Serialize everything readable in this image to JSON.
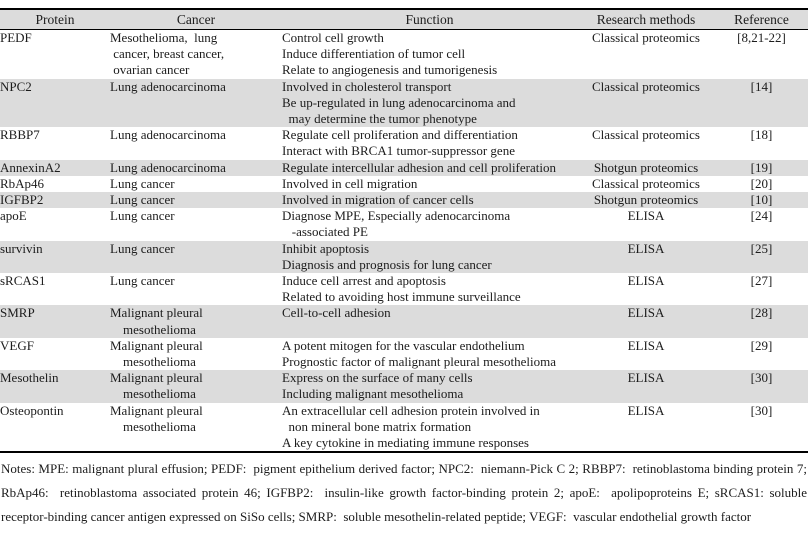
{
  "table": {
    "headers": [
      "Protein",
      "Cancer",
      "Function",
      "Research methods",
      "Reference"
    ],
    "rows": [
      {
        "protein": "PEDF",
        "cancer": [
          "Mesothelioma,  lung",
          " cancer, breast cancer,",
          " ovarian cancer"
        ],
        "functions": [
          "Control cell growth",
          "Induce differentiation of tumor cell",
          "Relate to angiogenesis and tumorigenesis"
        ],
        "method": "Classical proteomics",
        "reference": "[8,21-22]"
      },
      {
        "protein": "NPC2",
        "cancer": [
          "Lung adenocarcinoma"
        ],
        "functions": [
          "Involved in cholesterol transport",
          "Be up-regulated in lung adenocarcinoma and",
          "  may determine the tumor phenotype"
        ],
        "method": "Classical proteomics",
        "reference": "[14]"
      },
      {
        "protein": "RBBP7",
        "cancer": [
          "Lung adenocarcinoma"
        ],
        "functions": [
          "Regulate cell proliferation and differentiation",
          "Interact with BRCA1 tumor-suppressor gene"
        ],
        "method": "Classical proteomics",
        "reference": "[18]"
      },
      {
        "protein": "AnnexinA2",
        "cancer": [
          "Lung adenocarcinoma"
        ],
        "functions": [
          "Regulate intercellular adhesion and cell proliferation"
        ],
        "method": "Shotgun proteomics",
        "reference": "[19]"
      },
      {
        "protein": "RbAp46",
        "cancer": [
          "Lung cancer"
        ],
        "functions": [
          "Involved in cell migration"
        ],
        "method": "Classical proteomics",
        "reference": "[20]"
      },
      {
        "protein": "IGFBP2",
        "cancer": [
          "Lung cancer"
        ],
        "functions": [
          "Involved in migration of cancer cells"
        ],
        "method": "Shotgun proteomics",
        "reference": "[10]"
      },
      {
        "protein": "apoE",
        "cancer": [
          "Lung cancer"
        ],
        "functions": [
          "Diagnose MPE, Especially adenocarcinoma",
          "   -associated PE"
        ],
        "method": "ELISA",
        "reference": "[24]"
      },
      {
        "protein": "survivin",
        "cancer": [
          "Lung cancer"
        ],
        "functions": [
          "Inhibit apoptosis",
          "Diagnosis and prognosis for lung cancer"
        ],
        "method": "ELISA",
        "reference": "[25]"
      },
      {
        "protein": "sRCAS1",
        "cancer": [
          "Lung cancer"
        ],
        "functions": [
          "Induce cell arrest and apoptosis",
          "Related to avoiding host immune surveillance"
        ],
        "method": "ELISA",
        "reference": "[27]"
      },
      {
        "protein": "SMRP",
        "cancer": [
          "Malignant pleural",
          "    mesothelioma"
        ],
        "functions": [
          "Cell-to-cell adhesion"
        ],
        "method": "ELISA",
        "reference": "[28]"
      },
      {
        "protein": "VEGF",
        "cancer": [
          "Malignant pleural",
          "    mesothelioma"
        ],
        "functions": [
          "A potent mitogen for the vascular endothelium",
          "Prognostic factor of malignant pleural mesothelioma"
        ],
        "method": "ELISA",
        "reference": "[29]"
      },
      {
        "protein": "Mesothelin",
        "cancer": [
          "Malignant pleural",
          "    mesothelioma"
        ],
        "functions": [
          "Express on the surface of many cells",
          "Including malignant mesothelioma"
        ],
        "method": "ELISA",
        "reference": "[30]"
      },
      {
        "protein": "Osteopontin",
        "cancer": [
          "Malignant pleural",
          "    mesothelioma"
        ],
        "functions": [
          "An extracellular cell adhesion protein involved in",
          "  non mineral bone matrix formation",
          "A key cytokine in mediating immune responses"
        ],
        "method": "ELISA",
        "reference": "[30]"
      }
    ]
  },
  "notes": "Notes: MPE: malignant plural effusion; PEDF:  pigment epithelium derived factor; NPC2:  niemann-Pick C 2; RBBP7:  retinoblastoma binding protein 7; RbAp46:  retinoblastoma associated protein 46; IGFBP2:  insulin-like growth factor-binding protein 2; apoE:  apolipoproteins E; sRCAS1: soluble receptor-binding cancer antigen expressed on SiSo cells; SMRP:  soluble mesothelin-related peptide; VEGF:  vascular endothelial growth factor",
  "colors": {
    "row_shade": "#dcdcdc",
    "rule": "#000000",
    "text": "#1c1c1c"
  }
}
